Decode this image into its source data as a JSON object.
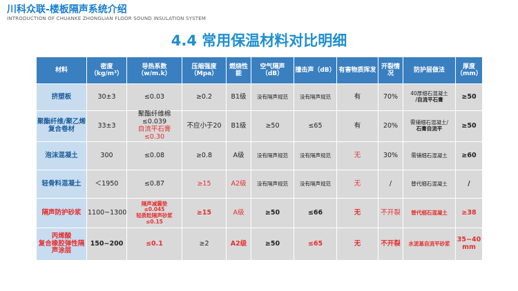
{
  "brand": {
    "title": "川科众联-楼板隔声系统介绍",
    "subtitle": "INTRODUCTION OF CHUANKE ZHONGLIAN FLOOR SOUND INSULATION SYSTEM"
  },
  "page_title": "4.4 常用保温材料对比明细",
  "headers": [
    "材料",
    "密度（kg/m³）",
    "导热系数（w/m.k）",
    "压缩强度（Mpa）",
    "燃烧性能",
    "空气隔声（dB）",
    "撞击声（dB）",
    "有害物质挥发",
    "开裂情况",
    "防护层做法",
    "厚度（mm）"
  ],
  "rows": {
    "xps": {
      "material": "挤塑板",
      "density": "30±3",
      "conductivity": "≤0.03",
      "compression": "≥0.2",
      "fire": "B1级",
      "air": "没有隔声规范",
      "impact": "没有隔声规范",
      "harmful": "有",
      "crack": "70%",
      "layer_1": "40厚细石混凝土",
      "layer_2": "/自流平石膏",
      "thickness": "≥50"
    },
    "pe": {
      "material": "聚酯纤维/聚乙烯复合卷材",
      "density": "33±3",
      "cond_1": "聚酯纤维棉",
      "cond_2": "≤0.039",
      "cond_3": "自流平石膏",
      "cond_4": "≤0.30",
      "compression": "不应小于20",
      "fire": "B1级",
      "air": "≥50",
      "impact": "≤65",
      "harmful": "有",
      "crack": "20%",
      "layer_1": "需铺细石混凝土/",
      "layer_2": "石膏自流平",
      "thickness": "≥50"
    },
    "foam": {
      "material": "泡沫混凝土",
      "density": "300",
      "conductivity": "≤0.08",
      "compression": "≥0.8",
      "fire": "A级",
      "air": "没有隔声规范",
      "impact": "没有隔声规范",
      "harmful": "无",
      "crack": "30%",
      "layer": "需铺细石混凝土",
      "thickness": "≥60"
    },
    "light": {
      "material": "轻骨料混凝土",
      "density": "＜1950",
      "conductivity": "≤0.87",
      "compression": "≥15",
      "fire": "A2级",
      "air": "没有隔声规范",
      "impact": "没有隔声规范",
      "harmful": "无",
      "crack": "/",
      "layer": "替代细石混凝土",
      "thickness": "/"
    },
    "mortar": {
      "material": "隔声防护砂浆",
      "density": "1100~1300",
      "cond_1": "隔声减震垫",
      "cond_2": "≤0.045",
      "cond_3": "轻质粒隔声砂浆",
      "cond_4": "≤0.15",
      "compression": "≥15",
      "fire": "A级",
      "air": "≥50",
      "impact": "≤66",
      "harmful": "无",
      "crack": "不开裂",
      "layer": "替代细石混凝土",
      "thickness": "≥38"
    },
    "acrylic": {
      "material_1": "丙烯酸",
      "material_2": "复合橡胶弹性隔声涂层",
      "density": "150~200",
      "conductivity": "≤0.1",
      "compression": "≥2",
      "fire": "A2级",
      "air": "≥50",
      "impact": "≤65",
      "harmful": "无",
      "crack": "不开裂",
      "layer": "水泥基自流平砂浆",
      "thickness": "35~40 mm"
    }
  },
  "colors": {
    "brand": "#1a7ecb",
    "title": "#1e8fcf",
    "header_bg": "#3a7fbf",
    "cell_bg": "#d9d9d9",
    "highlight": "#e23030"
  }
}
